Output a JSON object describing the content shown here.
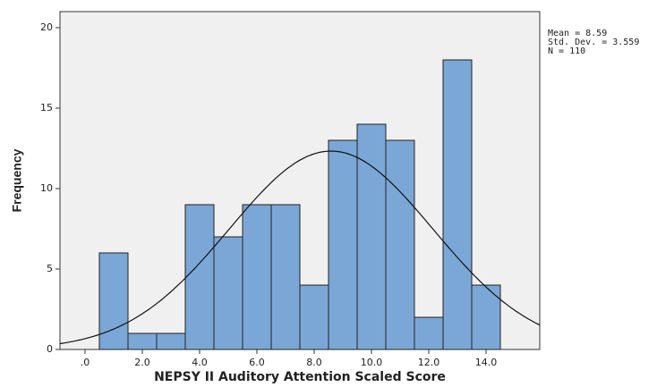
{
  "chart_data": {
    "type": "histogram",
    "xlabel": "NEPSY II Auditory Attention Scaled Score",
    "ylabel": "Frequency",
    "bins": [
      0.5,
      1.5,
      2.5,
      3.5,
      4.5,
      5.5,
      6.5,
      7.5,
      8.5,
      9.5,
      10.5,
      11.5,
      12.5,
      13.5,
      14.5
    ],
    "counts": [
      6,
      1,
      1,
      9,
      7,
      9,
      9,
      4,
      13,
      14,
      13,
      2,
      18,
      4
    ],
    "color": "#7ba7d6",
    "xlim": [
      -0.875,
      15.875
    ],
    "ylim": [
      0,
      21
    ],
    "xticks": [
      {
        "value": 0,
        "label": ".0"
      },
      {
        "value": 2,
        "label": "2.0"
      },
      {
        "value": 4,
        "label": "4.0"
      },
      {
        "value": 6,
        "label": "6.0"
      },
      {
        "value": 8,
        "label": "8.0"
      },
      {
        "value": 10,
        "label": "10.0"
      },
      {
        "value": 12,
        "label": "12.0"
      },
      {
        "value": 14,
        "label": "14.0"
      }
    ],
    "yticks": [
      0,
      5,
      10,
      15,
      20
    ],
    "stats_text": [
      "Mean = 8.59",
      "Std. Dev. = 3.559",
      "N = 110"
    ],
    "normal_curve": {
      "mean": 8.59,
      "sd": 3.559,
      "n": 110
    }
  }
}
